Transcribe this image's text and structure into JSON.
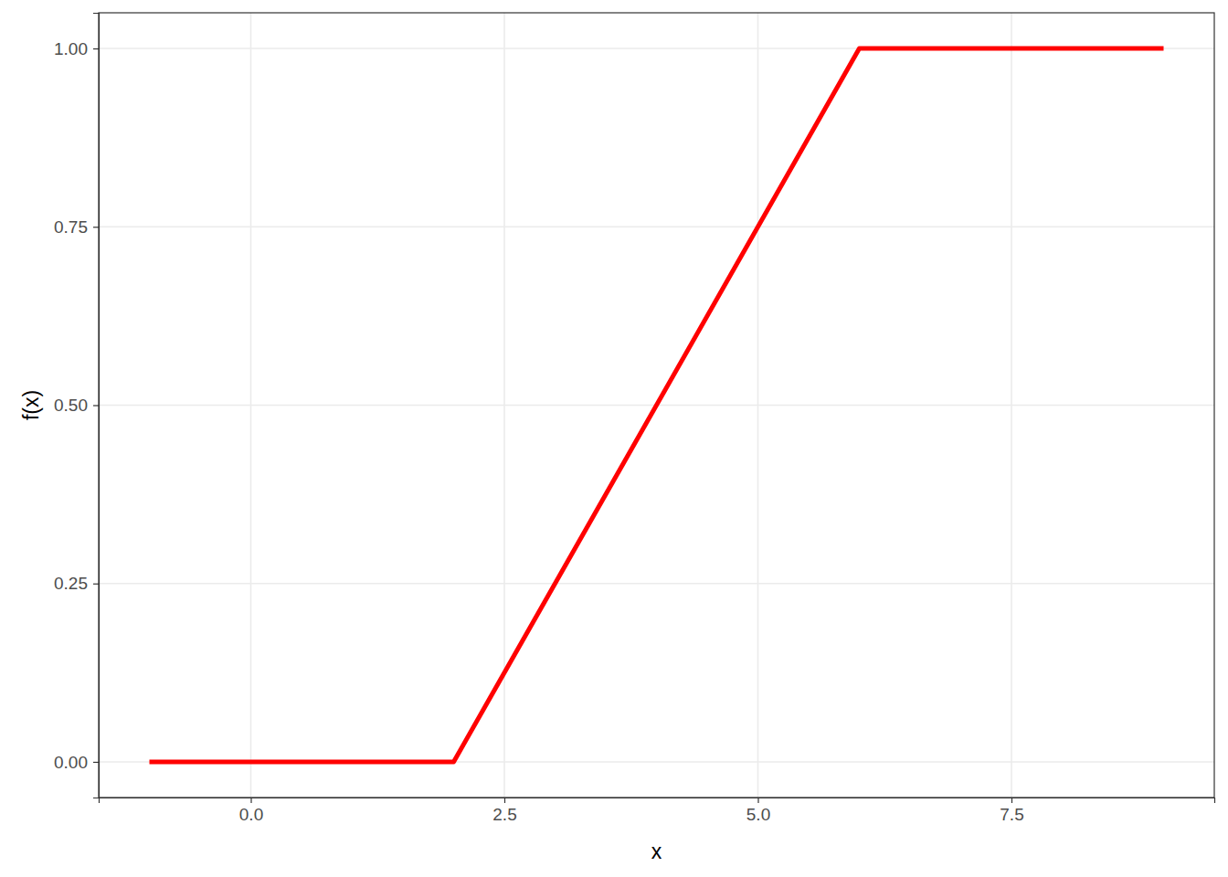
{
  "chart_data": {
    "type": "line",
    "x_label": "x",
    "y_label": "f(x)",
    "x": [
      -1,
      2,
      6,
      9
    ],
    "values": [
      0,
      0,
      1,
      1
    ],
    "color": "#ff0000",
    "xlim": [
      -1.5,
      9.5
    ],
    "xticks": [
      {
        "value": 0,
        "label": "0.0"
      },
      2.5,
      {
        "value": 5,
        "label": "5.0"
      },
      7.5
    ],
    "ylim": [
      -0.05,
      1.05
    ],
    "yticks": [
      {
        "value": 0,
        "label": "0.00"
      },
      {
        "value": 0.25,
        "label": "0.25"
      },
      {
        "value": 0.5,
        "label": "0.50"
      },
      {
        "value": 0.75,
        "label": "0.75"
      },
      {
        "value": 1,
        "label": "1.00"
      }
    ],
    "grid": true
  }
}
